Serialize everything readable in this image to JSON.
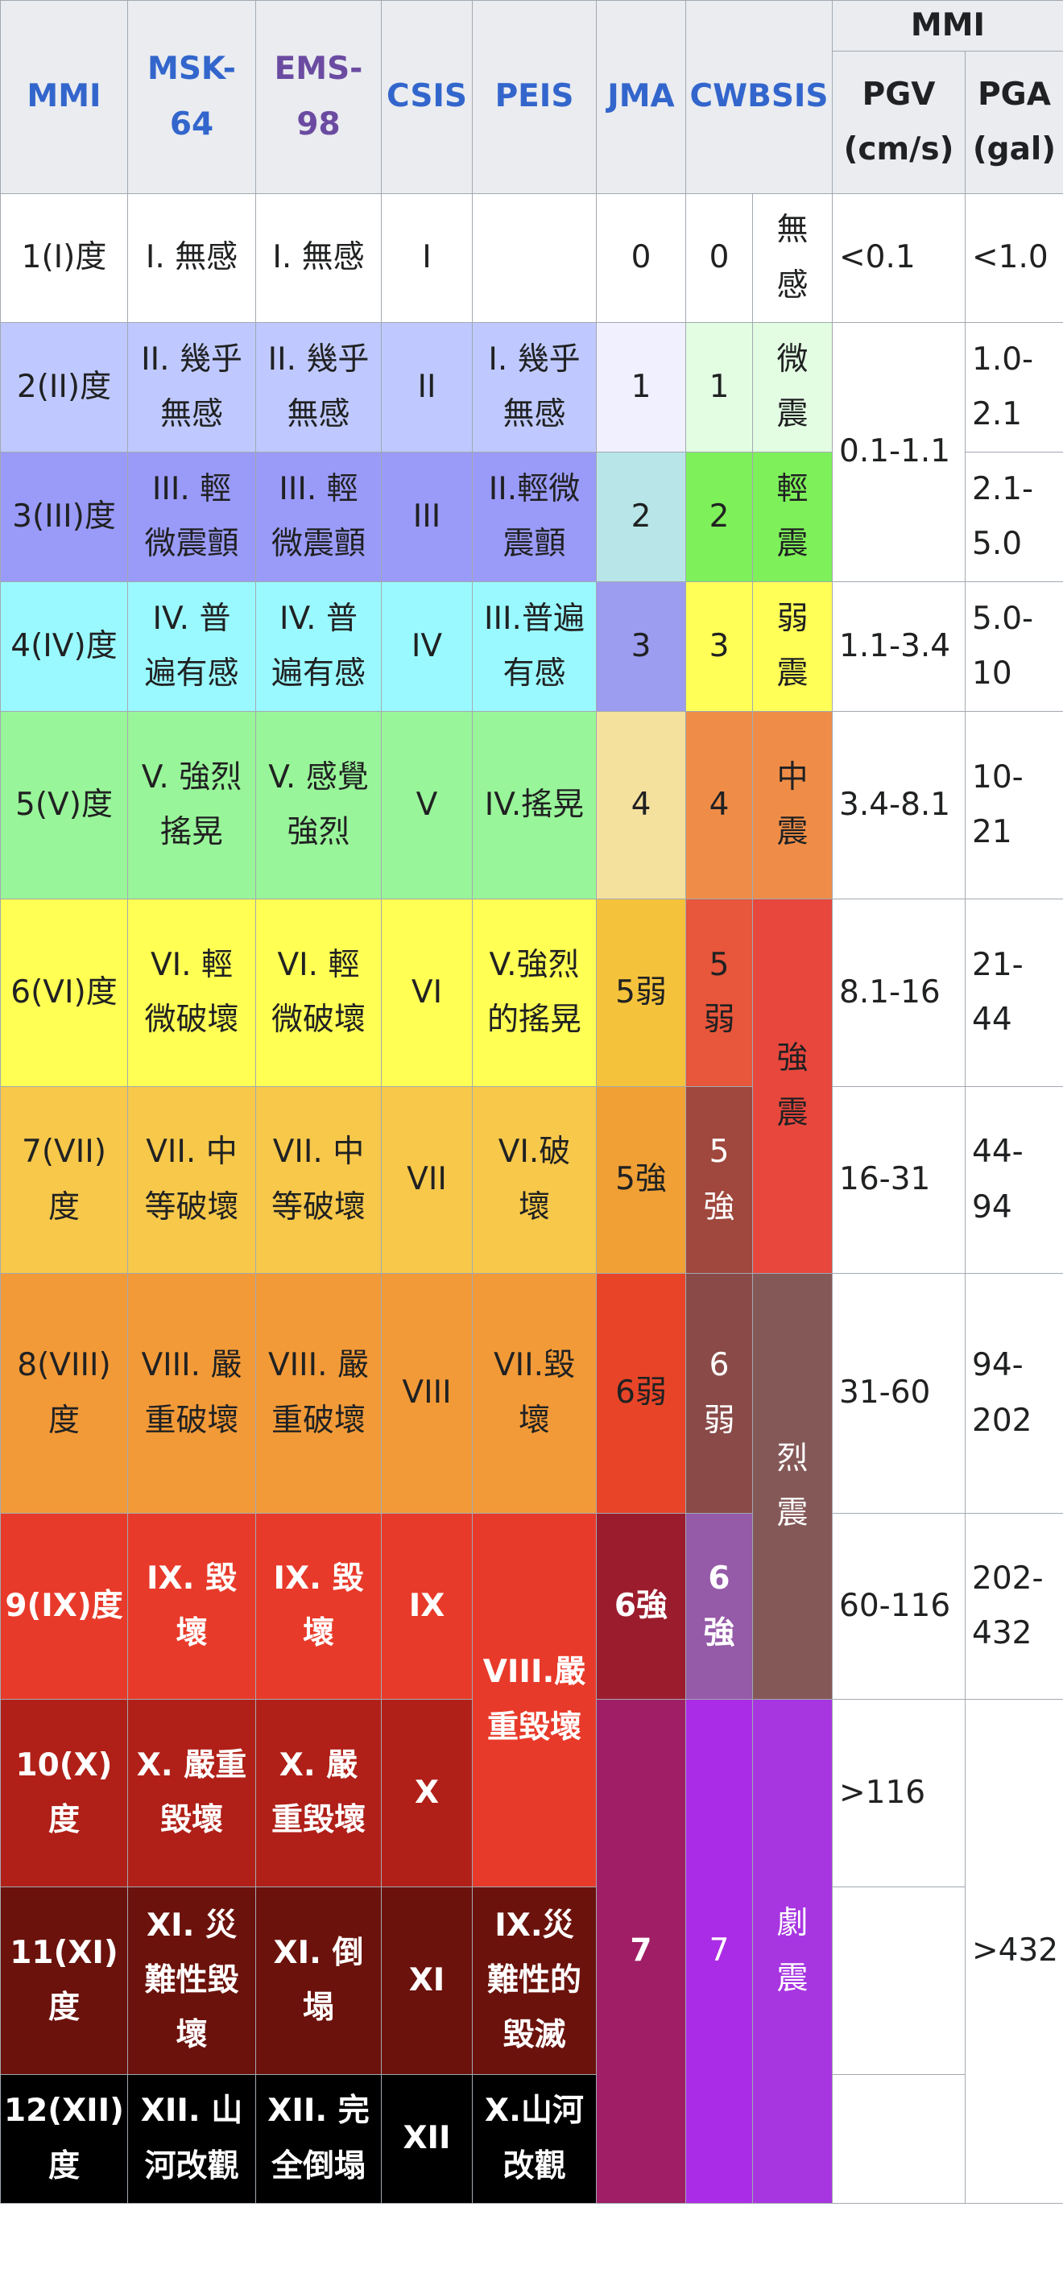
{
  "headers": {
    "mmi": "MMI",
    "msk": "MSK-\n64",
    "ems": "EMS-\n98",
    "csis": "CSIS",
    "peis": "PEIS",
    "jma": "JMA",
    "cwbsis": "CWBSIS",
    "mmi_group": "MMI",
    "pgv": "PGV\n(cm/s)",
    "pga": "PGA\n(gal)"
  },
  "rows": {
    "r1": {
      "mmi": "1(I)度",
      "msk": "I. 無感",
      "ems": "I. 無感",
      "csis": "I",
      "peis": "",
      "jma": "0",
      "cw_num": "0",
      "cw_word": "無\n感",
      "pgv": "<0.1",
      "pga": "<1.0"
    },
    "r2": {
      "mmi": "2(II)度",
      "msk": "II. 幾乎\n無感",
      "ems": "II. 幾乎\n無感",
      "csis": "II",
      "peis": "I. 幾乎\n無感",
      "jma": "1",
      "cw_num": "1",
      "cw_word": "微\n震",
      "pga": "1.0-\n2.1"
    },
    "r3": {
      "mmi": "3(III)度",
      "msk": "III. 輕\n微震顫",
      "ems": "III. 輕\n微震顫",
      "csis": "III",
      "peis": "II.輕微\n震顫",
      "jma": "2",
      "cw_num": "2",
      "cw_word": "輕\n震",
      "pga": "2.1-\n5.0"
    },
    "r4": {
      "mmi": "4(IV)度",
      "msk": "IV. 普\n遍有感",
      "ems": "IV. 普\n遍有感",
      "csis": "IV",
      "peis": "III.普遍\n有感",
      "jma": "3",
      "cw_num": "3",
      "cw_word": "弱\n震",
      "pgv": "1.1-3.4",
      "pga": "5.0-\n10"
    },
    "r5": {
      "mmi": "5(V)度",
      "msk": "V. 強烈\n搖晃",
      "ems": "V. 感覺\n強烈",
      "csis": "V",
      "peis": "IV.搖晃",
      "jma": "4",
      "cw_num": "4",
      "cw_word": "中\n震",
      "pgv": "3.4-8.1",
      "pga": "10-21"
    },
    "r6": {
      "mmi": "6(VI)度",
      "msk": "VI. 輕\n微破壞",
      "ems": "VI. 輕\n微破壞",
      "csis": "VI",
      "peis": "V.強烈\n的搖晃",
      "jma": "5弱",
      "cw_num": "5\n弱",
      "pgv": "8.1-16",
      "pga": "21-44"
    },
    "r7": {
      "mmi": "7(VII)\n度",
      "msk": "VII. 中\n等破壞",
      "ems": "VII. 中\n等破壞",
      "csis": "VII",
      "peis": "VI.破\n壞",
      "jma": "5強",
      "cw_num": "5\n強",
      "pgv": "16-31",
      "pga": "44-94"
    },
    "r8": {
      "mmi": "8(VIII)\n度",
      "msk": "VIII. 嚴\n重破壞",
      "ems": "VIII. 嚴\n重破壞",
      "csis": "VIII",
      "peis": "VII.毀\n壞",
      "jma": "6弱",
      "cw_num": "6\n弱",
      "pgv": "31-60",
      "pga": "94-\n202"
    },
    "r9": {
      "mmi": "9(IX)度",
      "msk": "IX. 毀\n壞",
      "ems": "IX. 毀\n壞",
      "csis": "IX",
      "jma": "6強",
      "cw_num": "6\n強",
      "pgv": "60-116",
      "pga": "202-\n432"
    },
    "r10": {
      "mmi": "10(X)\n度",
      "msk": "X. 嚴重\n毀壞",
      "ems": "X. 嚴\n重毀壞",
      "csis": "X",
      "pgv": ">116"
    },
    "r11": {
      "mmi": "11(XI)\n度",
      "msk": "XI. 災\n難性毀\n壞",
      "ems": "XI. 倒\n塌",
      "csis": "XI",
      "peis": "IX.災\n難性的\n毀滅",
      "pgv": ""
    },
    "r12": {
      "mmi": "12(XII)\n度",
      "msk": "XII. 山\n河改觀",
      "ems": "XII. 完\n全倒塌",
      "csis": "XII",
      "peis": "X.山河\n改觀",
      "pgv": ""
    }
  },
  "merged": {
    "pgv_r2_r3": "0.1-1.1",
    "cw_word_r6_r7": "強\n震",
    "cw_word_r8_r9": "烈\n震",
    "peis_r9_r10": "VIII.嚴\n重毀壞",
    "jma_r10_r12": "7",
    "cw_num_r10_r12": "7",
    "cw_word_r10_r12": "劇\n震",
    "pga_r10_r12": ">432"
  },
  "colors": {
    "header_bg": "#eaecf0",
    "border": "#a2a9b1",
    "mmi_1": "#ffffff",
    "mmi_2": "#bfc9ff",
    "mmi_3": "#9a9af8",
    "mmi_4": "#9af9ff",
    "mmi_5": "#99f599",
    "mmi_6": "#ffff54",
    "mmi_7": "#f7c84a",
    "mmi_8": "#f29a38",
    "mmi_9": "#e83a2a",
    "mmi_10": "#b02018",
    "mmi_11": "#6b120c",
    "mmi_12": "#000000",
    "jma_1": "#f0f0fe",
    "jma_2": "#b8e6e8",
    "jma_3": "#9c9cf0",
    "jma_4": "#f5e19e",
    "jma_5w": "#f5c33b",
    "jma_5s": "#f0a035",
    "jma_6w": "#e84528",
    "jma_6s": "#9b1c2d",
    "jma_7": "#a01e66",
    "cw_1": "#e3fde3",
    "cw_2": "#7ef05a",
    "cw_3": "#ffff57",
    "cw_4": "#ef8d48",
    "cw_5w": "#e8563b",
    "cw_5s": "#a0483e",
    "cw_6w": "#8a4a48",
    "cw_6s": "#955aa8",
    "cw_7": "#ab2ce6",
    "cw_word_micro": "#e3fde3",
    "cw_word_light": "#7ef05a",
    "cw_word_weak": "#ffff57",
    "cw_word_mid": "#ef8d48",
    "cw_word_strong": "#e8473d",
    "cw_word_severe": "#855858",
    "cw_word_violent": "#a736e1"
  }
}
